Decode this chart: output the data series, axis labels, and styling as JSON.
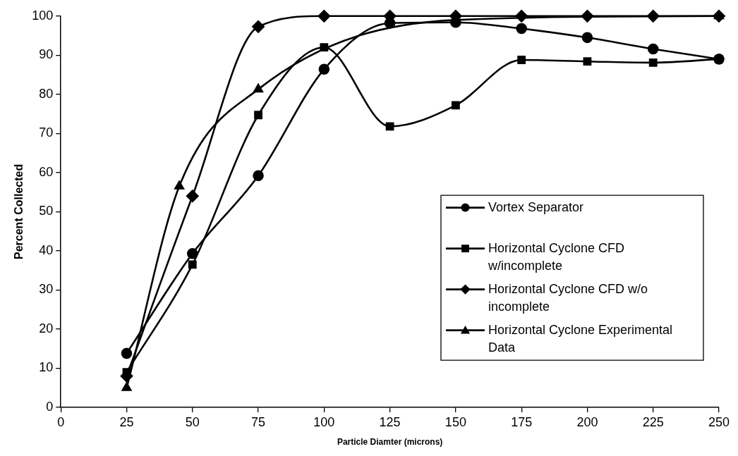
{
  "chart_data": {
    "type": "line",
    "xlabel": "Particle Diamter (microns)",
    "ylabel": "Percent Collected",
    "xlim": [
      0,
      250
    ],
    "xticks": [
      0,
      25,
      50,
      75,
      100,
      125,
      150,
      175,
      200,
      225,
      250
    ],
    "ylim": [
      0,
      100
    ],
    "yticks": [
      0,
      10,
      20,
      30,
      40,
      50,
      60,
      70,
      80,
      90,
      100
    ],
    "grid": false,
    "legend": "right",
    "series": [
      {
        "name": "Vortex Separator",
        "color": "#000000",
        "marker": "circle",
        "x": [
          25,
          50,
          75,
          100,
          125,
          150,
          175,
          200,
          225,
          250
        ],
        "values": [
          13.8,
          39.3,
          59.2,
          86.4,
          98.2,
          98.4,
          96.8,
          94.5,
          91.6,
          89
        ]
      },
      {
        "name": "Horizontal Cyclone CFD w/incomplete",
        "color": "#000000",
        "marker": "square",
        "x": [
          25,
          50,
          75,
          100,
          125,
          150,
          175,
          200,
          225,
          250
        ],
        "values": [
          9,
          36.5,
          74.7,
          92,
          71.8,
          77.2,
          88.8,
          88.4,
          88.1,
          89
        ]
      },
      {
        "name": "Horizontal Cyclone CFD w/o incomplete",
        "color": "#000000",
        "marker": "diamond",
        "x": [
          25,
          50,
          75,
          100,
          125,
          150,
          175,
          200,
          225,
          250
        ],
        "values": [
          8,
          54,
          97.3,
          100,
          100,
          100,
          100,
          100,
          100,
          100
        ]
      },
      {
        "name": "Horizontal Cyclone Experimental Data",
        "color": "#000000",
        "marker": "triangle",
        "x": [
          25,
          45,
          75,
          150,
          250
        ],
        "values": [
          5,
          56.5,
          81.3,
          99,
          100
        ]
      }
    ]
  }
}
